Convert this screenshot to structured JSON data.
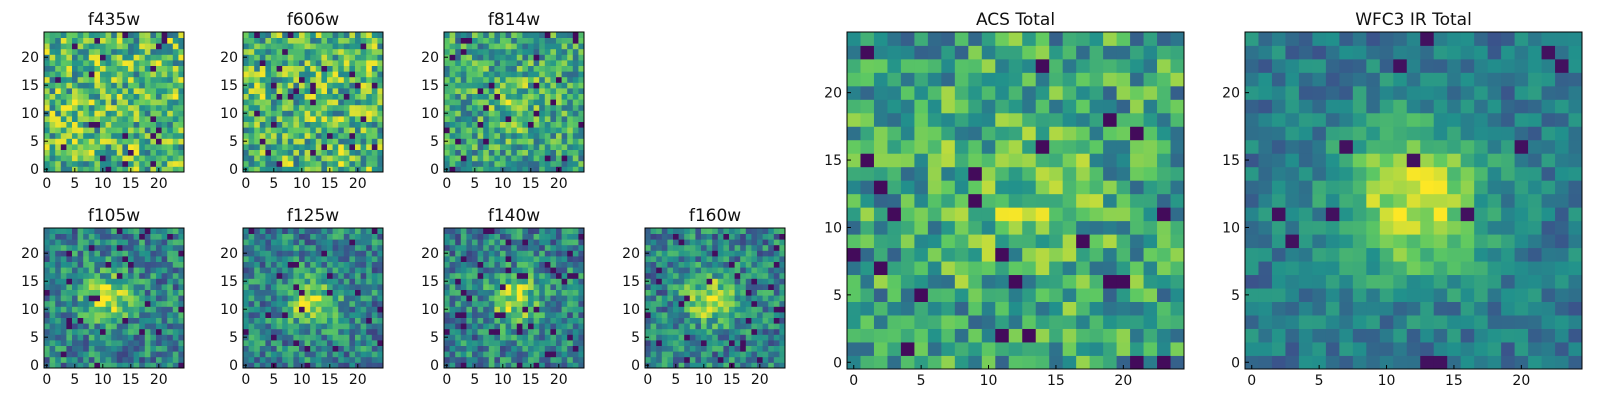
{
  "figure": {
    "description_colormap": "viridis",
    "colormap": [
      "#440154",
      "#3b528b",
      "#21918c",
      "#5ec962",
      "#fde725"
    ]
  },
  "chart_data": [
    {
      "type": "heatmap",
      "title": "f435w",
      "grid": [
        25,
        25
      ],
      "xlim": [
        0,
        24
      ],
      "ylim": [
        0,
        24
      ],
      "xticks": [
        "0",
        "5",
        "10",
        "15",
        "20"
      ],
      "yticks": [
        "0",
        "5",
        "10",
        "15",
        "20"
      ],
      "pattern": "noise",
      "source_center": null,
      "seed": 11
    },
    {
      "type": "heatmap",
      "title": "f606w",
      "grid": [
        25,
        25
      ],
      "xlim": [
        0,
        24
      ],
      "ylim": [
        0,
        24
      ],
      "xticks": [
        "0",
        "5",
        "10",
        "15",
        "20"
      ],
      "yticks": [
        "0",
        "5",
        "10",
        "15",
        "20"
      ],
      "pattern": "noise",
      "source_center": null,
      "seed": 23
    },
    {
      "type": "heatmap",
      "title": "f814w",
      "grid": [
        25,
        25
      ],
      "xlim": [
        0,
        24
      ],
      "ylim": [
        0,
        24
      ],
      "xticks": [
        "0",
        "5",
        "10",
        "15",
        "20"
      ],
      "yticks": [
        "0",
        "5",
        "10",
        "15",
        "20"
      ],
      "pattern": "noise-faint-source",
      "source_center": [
        12,
        12
      ],
      "seed": 37
    },
    {
      "type": "heatmap",
      "title": "f105w",
      "grid": [
        25,
        25
      ],
      "xlim": [
        0,
        24
      ],
      "ylim": [
        0,
        24
      ],
      "xticks": [
        "0",
        "5",
        "10",
        "15",
        "20"
      ],
      "yticks": [
        "0",
        "5",
        "10",
        "15",
        "20"
      ],
      "pattern": "source",
      "source_center": [
        11,
        12
      ],
      "seed": 41
    },
    {
      "type": "heatmap",
      "title": "f125w",
      "grid": [
        25,
        25
      ],
      "xlim": [
        0,
        24
      ],
      "ylim": [
        0,
        24
      ],
      "xticks": [
        "0",
        "5",
        "10",
        "15",
        "20"
      ],
      "yticks": [
        "0",
        "5",
        "10",
        "15",
        "20"
      ],
      "pattern": "source",
      "source_center": [
        12,
        11
      ],
      "seed": 53
    },
    {
      "type": "heatmap",
      "title": "f140w",
      "grid": [
        25,
        25
      ],
      "xlim": [
        0,
        24
      ],
      "ylim": [
        0,
        24
      ],
      "xticks": [
        "0",
        "5",
        "10",
        "15",
        "20"
      ],
      "yticks": [
        "0",
        "5",
        "10",
        "15",
        "20"
      ],
      "pattern": "source",
      "source_center": [
        12,
        12
      ],
      "seed": 67
    },
    {
      "type": "heatmap",
      "title": "f160w",
      "grid": [
        25,
        25
      ],
      "xlim": [
        0,
        24
      ],
      "ylim": [
        0,
        24
      ],
      "xticks": [
        "0",
        "5",
        "10",
        "15",
        "20"
      ],
      "yticks": [
        "0",
        "5",
        "10",
        "15",
        "20"
      ],
      "pattern": "source",
      "source_center": [
        11,
        12
      ],
      "seed": 71
    },
    {
      "type": "heatmap",
      "title": "ACS Total",
      "grid": [
        25,
        25
      ],
      "xlim": [
        0,
        24
      ],
      "ylim": [
        0,
        24
      ],
      "xticks": [
        "0",
        "5",
        "10",
        "15",
        "20"
      ],
      "yticks": [
        "0",
        "5",
        "10",
        "15",
        "20"
      ],
      "pattern": "noise-faint-source",
      "source_center": [
        12,
        12
      ],
      "seed": 83
    },
    {
      "type": "heatmap",
      "title": "WFC3 IR Total",
      "grid": [
        25,
        25
      ],
      "xlim": [
        0,
        24
      ],
      "ylim": [
        0,
        24
      ],
      "xticks": [
        "0",
        "5",
        "10",
        "15",
        "20"
      ],
      "yticks": [
        "0",
        "5",
        "10",
        "15",
        "20"
      ],
      "pattern": "source-strong",
      "source_center": [
        12,
        12
      ],
      "seed": 97
    }
  ]
}
